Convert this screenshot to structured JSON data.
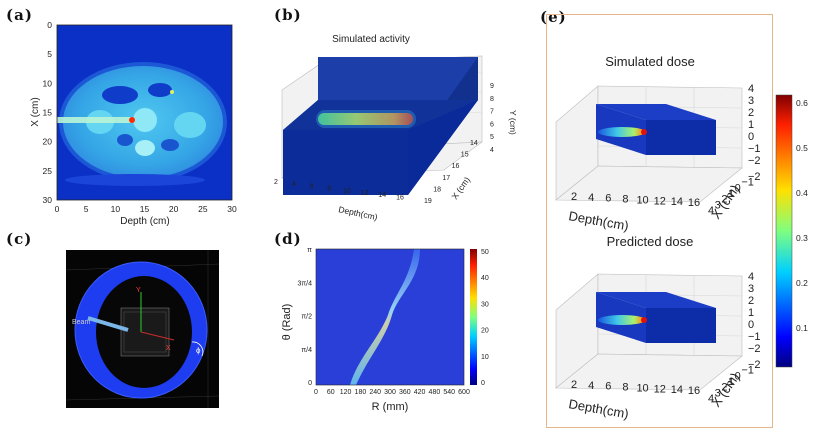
{
  "labels": {
    "a": "(a)",
    "b": "(b)",
    "c": "(c)",
    "d": "(d)",
    "e": "(e)"
  },
  "panel_a": {
    "xlabel": "Depth (cm)",
    "ylabel": "X (cm)",
    "xticks": [
      "0",
      "5",
      "10",
      "15",
      "20",
      "25",
      "30"
    ],
    "yticks": [
      "0",
      "5",
      "10",
      "15",
      "20",
      "25",
      "30"
    ]
  },
  "panel_b": {
    "title": "Simulated activity",
    "depth_label": "Depth(cm)",
    "x_label": "X (cm)",
    "y_label": "Y (cm)",
    "depth_ticks": [
      "2",
      "4",
      "6",
      "8",
      "10",
      "12",
      "14",
      "16"
    ],
    "x_ticks": [
      "14",
      "15",
      "16",
      "17",
      "18",
      "19"
    ],
    "y_ticks": [
      "9",
      "8",
      "7",
      "6",
      "5",
      "4"
    ]
  },
  "panel_c": {
    "beam_label": "Beam",
    "phi_label": "ϕ",
    "y_axis": "Y",
    "x_axis": "X"
  },
  "panel_d": {
    "xlabel": "R (mm)",
    "ylabel": "θ (Rad)",
    "xticks": [
      "0",
      "60",
      "120",
      "180",
      "240",
      "300",
      "360",
      "420",
      "480",
      "540",
      "600"
    ],
    "yticks": [
      "π",
      "3π/4",
      "π/2",
      "π/4",
      "0"
    ],
    "colorbar_ticks": [
      "50",
      "40",
      "30",
      "20",
      "10",
      "0"
    ]
  },
  "panel_e": {
    "title_top": "Simulated dose",
    "title_bottom": "Predicted dose",
    "depth_label": "Depth(cm)",
    "x_label": "X (cm)",
    "depth_ticks": [
      "2",
      "4",
      "6",
      "8",
      "10",
      "12",
      "14",
      "16"
    ],
    "x_ticks": [
      "4",
      "3",
      "2",
      "1",
      "0",
      "−1",
      "−2"
    ],
    "z_ticks": [
      "4",
      "3",
      "2",
      "1",
      "0",
      "−1",
      "−2"
    ],
    "colorbar_ticks": [
      "0.6",
      "0.5",
      "0.4",
      "0.3",
      "0.2",
      "0.1"
    ]
  },
  "colors": {
    "frame_e": "#e8b48a",
    "jet_dark": "#00007f",
    "hot": "#ff2000"
  }
}
